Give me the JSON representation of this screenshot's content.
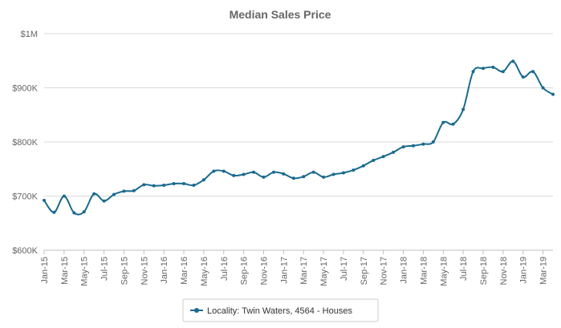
{
  "chart_data": {
    "type": "line",
    "title": "Median Sales Price",
    "xlabel": "",
    "ylabel": "",
    "ylim": [
      600000,
      1000000
    ],
    "y_ticks": [
      {
        "value": 600000,
        "label": "$600K"
      },
      {
        "value": 700000,
        "label": "$700K"
      },
      {
        "value": 800000,
        "label": "$800K"
      },
      {
        "value": 900000,
        "label": "$900K"
      },
      {
        "value": 1000000,
        "label": "$1M"
      }
    ],
    "x_tick_labels": [
      "Jan-15",
      "Mar-15",
      "May-15",
      "Jul-15",
      "Sep-15",
      "Nov-15",
      "Jan-16",
      "Mar-16",
      "May-16",
      "Jul-16",
      "Sep-16",
      "Nov-16",
      "Jan-17",
      "Mar-17",
      "May-17",
      "Jul-17",
      "Sep-17",
      "Nov-17",
      "Jan-18",
      "Mar-18",
      "May-18",
      "Jul-18",
      "Sep-18",
      "Nov-18",
      "Jan-19",
      "Mar-19"
    ],
    "x": [
      "Jan-15",
      "Feb-15",
      "Mar-15",
      "Apr-15",
      "May-15",
      "Jun-15",
      "Jul-15",
      "Aug-15",
      "Sep-15",
      "Oct-15",
      "Nov-15",
      "Dec-15",
      "Jan-16",
      "Feb-16",
      "Mar-16",
      "Apr-16",
      "May-16",
      "Jun-16",
      "Jul-16",
      "Aug-16",
      "Sep-16",
      "Oct-16",
      "Nov-16",
      "Dec-16",
      "Jan-17",
      "Feb-17",
      "Mar-17",
      "Apr-17",
      "May-17",
      "Jun-17",
      "Jul-17",
      "Aug-17",
      "Sep-17",
      "Oct-17",
      "Nov-17",
      "Dec-17",
      "Jan-18",
      "Feb-18",
      "Mar-18",
      "Apr-18",
      "May-18",
      "Jun-18",
      "Jul-18",
      "Aug-18",
      "Sep-18",
      "Oct-18",
      "Nov-18",
      "Dec-18",
      "Jan-19",
      "Feb-19",
      "Mar-19",
      "Apr-19"
    ],
    "series": [
      {
        "name": "Locality: Twin Waters, 4564 - Houses",
        "color": "#1a6a8f",
        "values": [
          692000,
          670000,
          700000,
          669000,
          671000,
          704000,
          691000,
          703000,
          709000,
          710000,
          721000,
          719000,
          720000,
          723000,
          723000,
          720000,
          730000,
          746000,
          746000,
          738000,
          740000,
          744000,
          735000,
          744000,
          741000,
          733000,
          736000,
          744000,
          735000,
          740000,
          743000,
          748000,
          756000,
          766000,
          773000,
          781000,
          791000,
          793000,
          796000,
          800000,
          836000,
          833000,
          860000,
          930000,
          936000,
          938000,
          930000,
          949000,
          920000,
          930000,
          900000,
          888000
        ]
      }
    ],
    "legend_position": "bottom-center",
    "grid": true
  }
}
